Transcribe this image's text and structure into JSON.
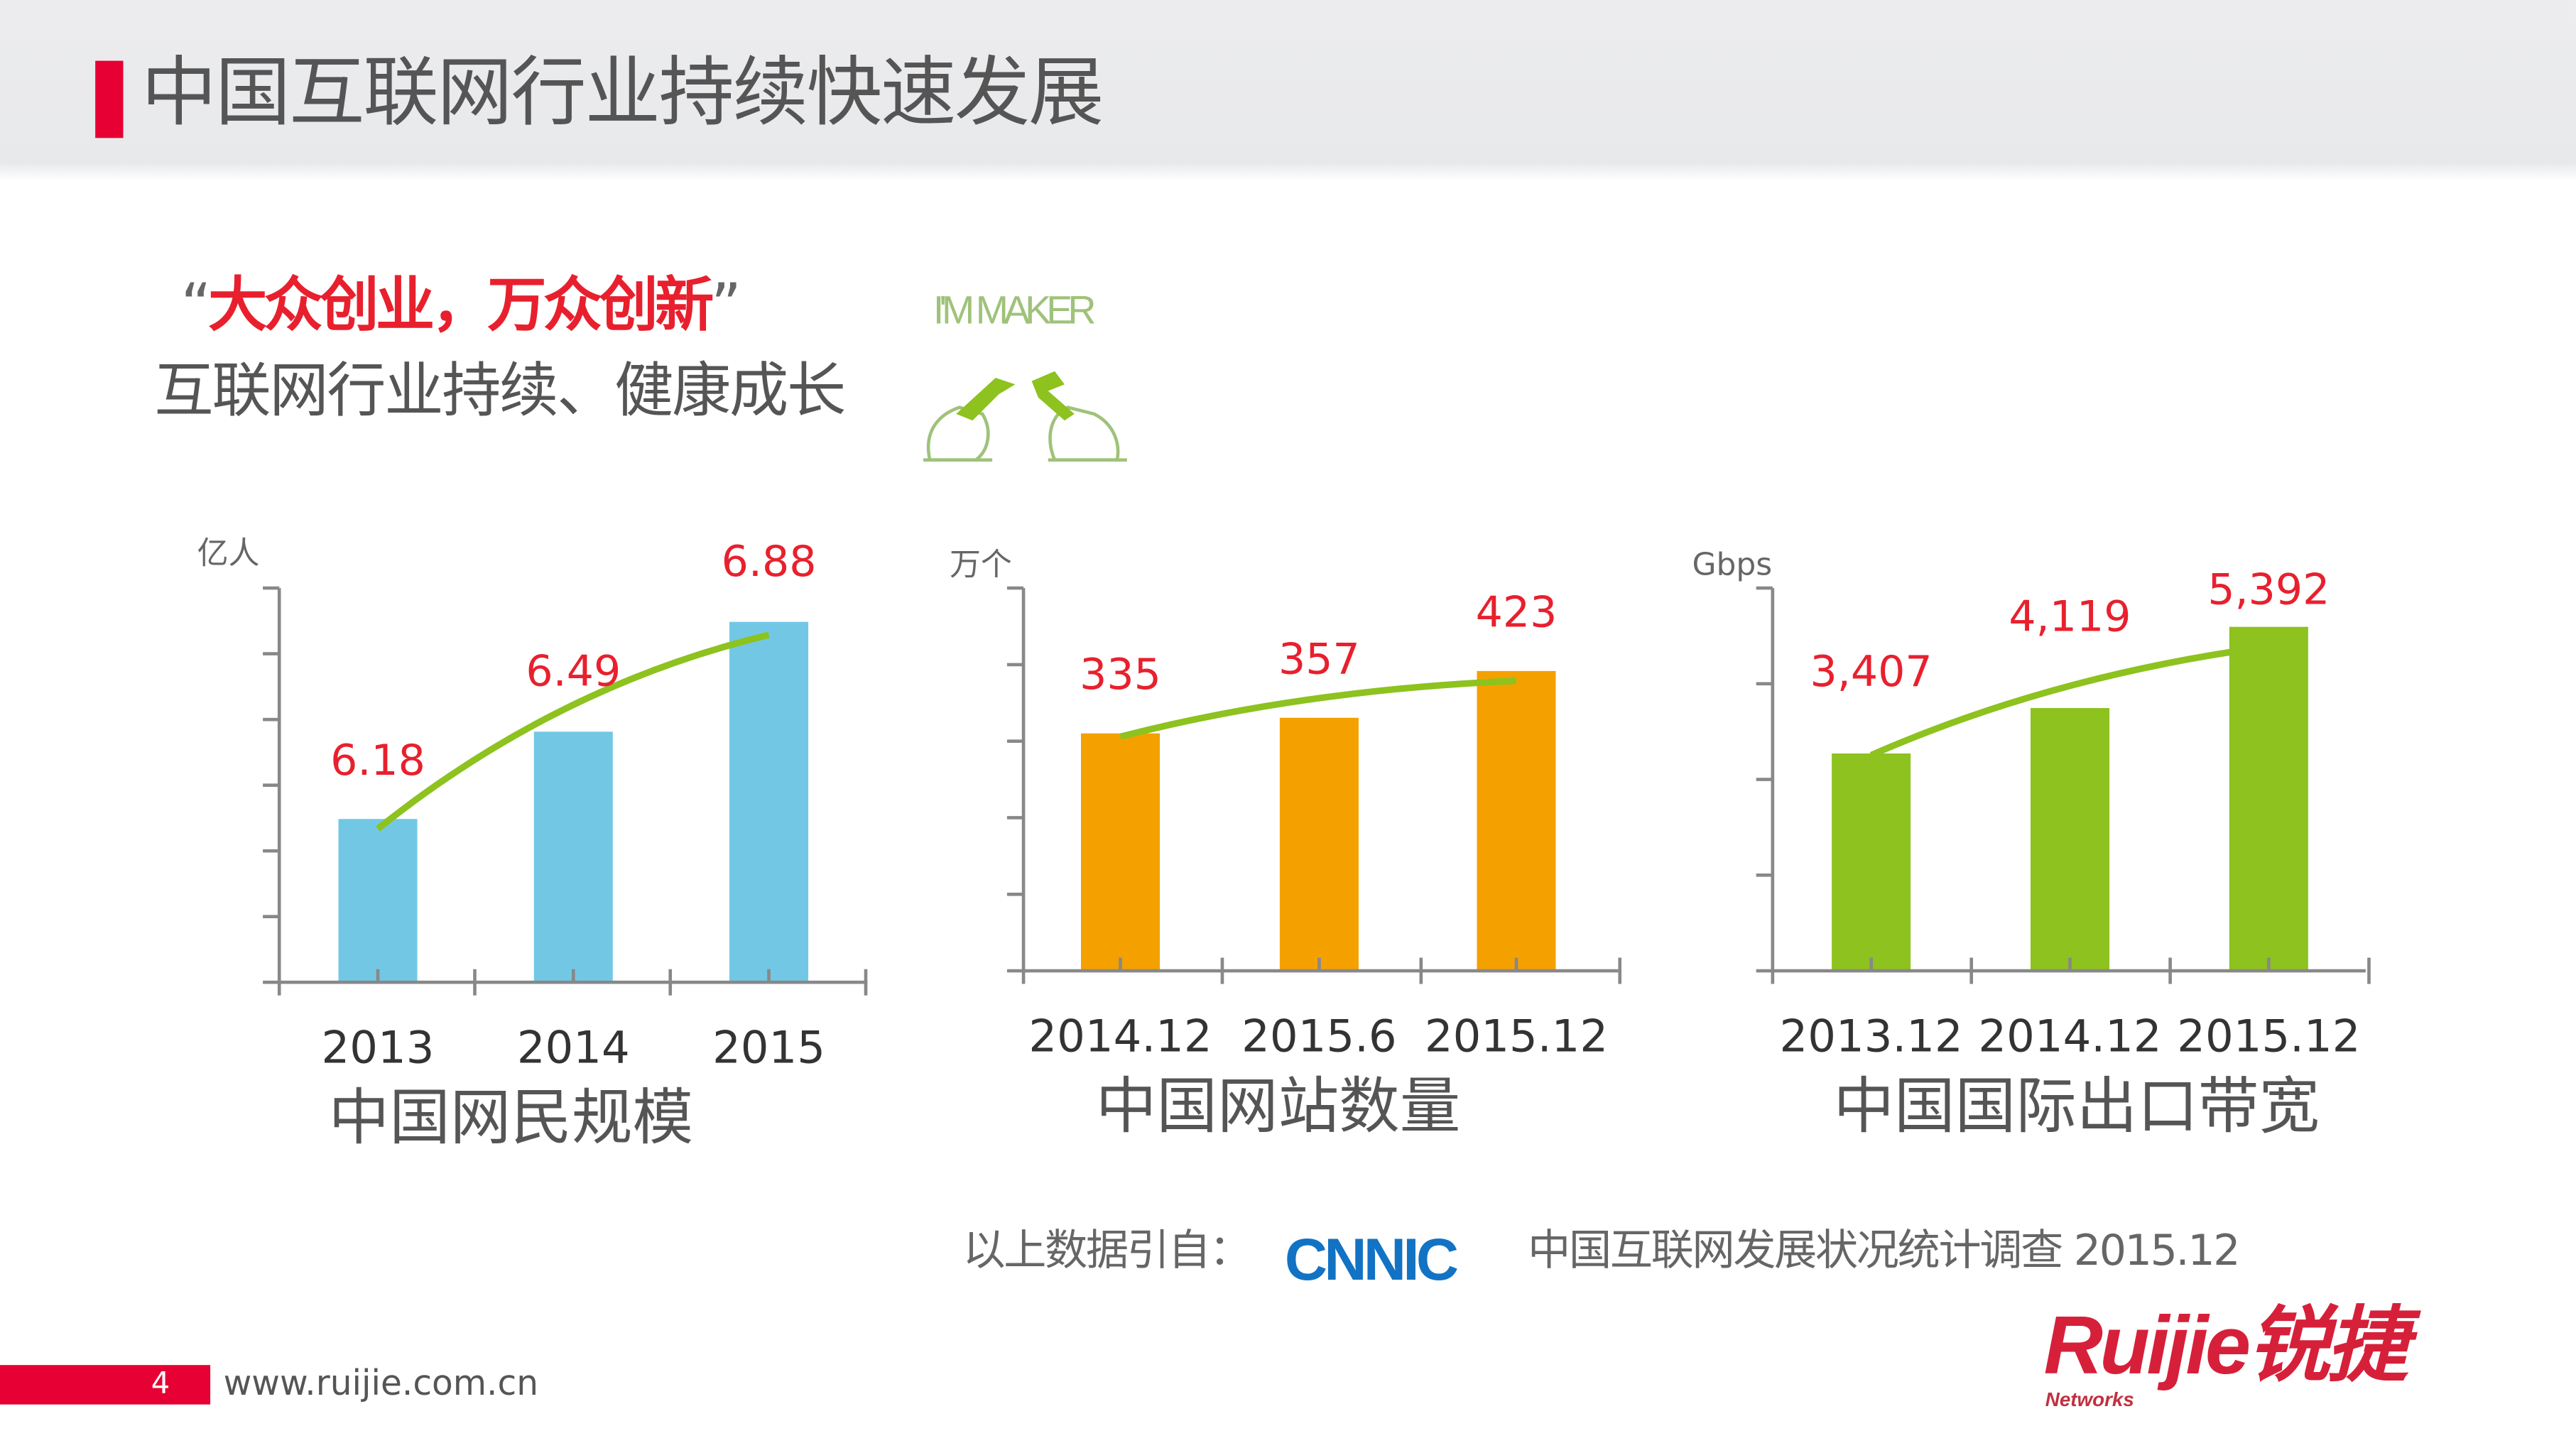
{
  "header": {
    "title": "中国互联网行业持续快速发展"
  },
  "slogan": {
    "open_quote": "“",
    "text": "大众创业，万众创新",
    "close_quote": "”",
    "subtitle": "互联网行业持续、健康成长"
  },
  "maker_logo": {
    "text": "I'M MAKER",
    "icon": "hands-with-tools-icon"
  },
  "colors": {
    "accent": "#e60033",
    "label_red": "#e8202e",
    "trend_green": "#8dc21f",
    "blue_bar": "#72c8e4",
    "orange_bar": "#f4a100",
    "green_bar": "#8dc21f"
  },
  "chart_data": [
    {
      "type": "bar",
      "title": "中国网民规模",
      "ylabel": "亿人",
      "categories": [
        "2013",
        "2014",
        "2015"
      ],
      "values": [
        6.18,
        6.49,
        6.88
      ],
      "data_labels": [
        "6.18",
        "6.49",
        "6.88"
      ],
      "ylim": [
        5.6,
        7.0
      ],
      "trend_line": true,
      "bar_color": "#72c8e4"
    },
    {
      "type": "bar",
      "title": "中国网站数量",
      "ylabel": "万个",
      "categories": [
        "2014.12",
        "2015.6",
        "2015.12"
      ],
      "values": [
        335,
        357,
        423
      ],
      "data_labels": [
        "335",
        "357",
        "423"
      ],
      "ylim": [
        0,
        540
      ],
      "trend_line": true,
      "bar_color": "#f4a100"
    },
    {
      "type": "bar",
      "title": "中国国际出口带宽",
      "ylabel": "Gbps",
      "categories": [
        "2013.12",
        "2014.12",
        "2015.12"
      ],
      "values": [
        3407,
        4119,
        5392
      ],
      "data_labels": [
        "3,407",
        "4,119",
        "5,392"
      ],
      "ylim": [
        0,
        6000
      ],
      "trend_line": true,
      "bar_color": "#8dc21f"
    }
  ],
  "source": {
    "prefix": "以上数据引自：",
    "logo": "CNNIC",
    "text": "中国互联网发展状况统计调查 2015.12"
  },
  "footer": {
    "page": "4",
    "site": "www.ruijie.com.cn",
    "brand": "Ruijie锐捷",
    "brand_sub": "Networks"
  }
}
